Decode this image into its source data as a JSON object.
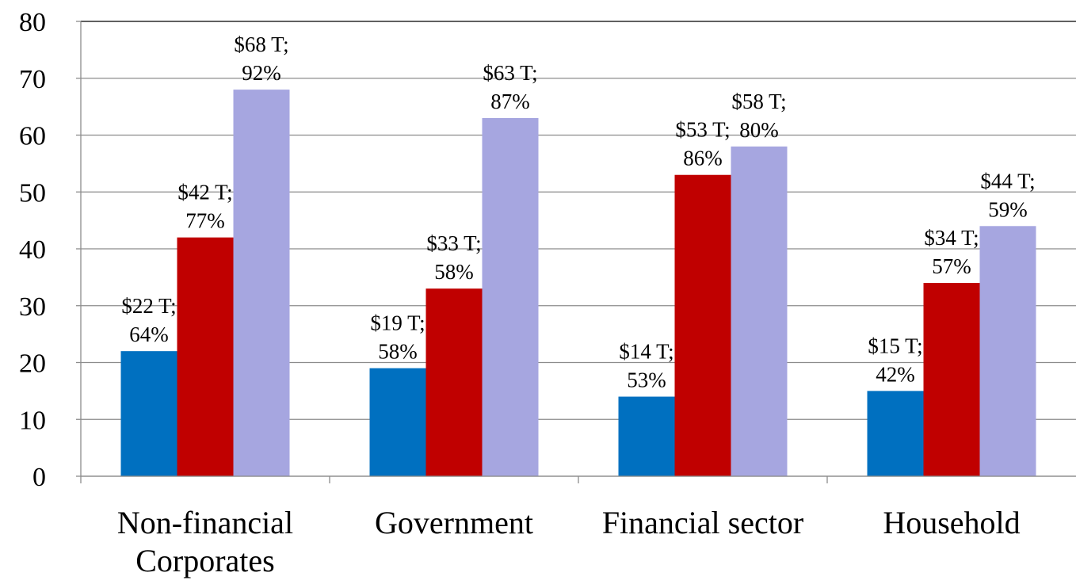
{
  "chart_data": {
    "type": "bar",
    "categories": [
      "Non-financial Corporates",
      "Government",
      "Financial sector",
      "Household"
    ],
    "series": [
      {
        "color": "#0070c0",
        "values": [
          22,
          19,
          14,
          15
        ],
        "value_labels": [
          "$22 T; 64%",
          "$19 T; 58%",
          "$14 T; 53%",
          "$15 T; 42%"
        ]
      },
      {
        "color": "#c00000",
        "values": [
          42,
          33,
          53,
          34
        ],
        "value_labels": [
          "$42 T; 77%",
          "$33 T; 58%",
          "$53 T; 86%",
          "$34 T; 57%"
        ]
      },
      {
        "color": "#a6a6e0",
        "values": [
          68,
          63,
          58,
          44
        ],
        "value_labels": [
          "$68 T; 92%",
          "$63 T; 87%",
          "$58 T; 80%",
          "$44 T; 59%"
        ]
      }
    ],
    "ylim": [
      0,
      80
    ],
    "yticks": [
      0,
      10,
      20,
      30,
      40,
      50,
      60,
      70,
      80
    ],
    "grid": true
  }
}
